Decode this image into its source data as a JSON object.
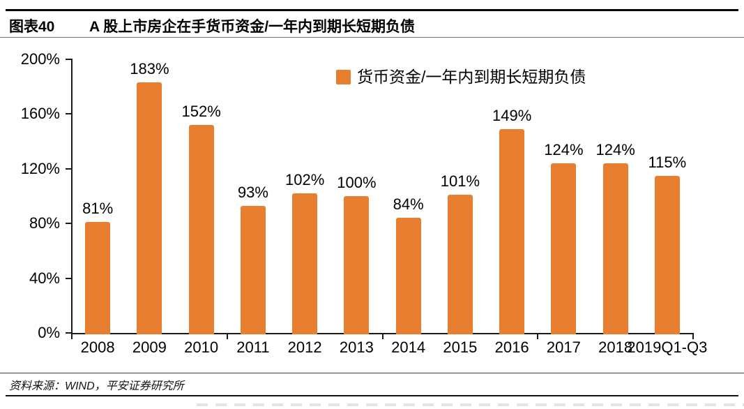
{
  "header": {
    "figure_label": "图表40",
    "title": "A 股上市房企在手货币资金/一年内到期长短期负债"
  },
  "chart_data": {
    "type": "bar",
    "title": "A 股上市房企在手货币资金/一年内到期长短期负债",
    "categories": [
      "2008",
      "2009",
      "2010",
      "2011",
      "2012",
      "2013",
      "2014",
      "2015",
      "2016",
      "2017",
      "2018",
      "2019Q1-Q3"
    ],
    "values": [
      81,
      183,
      152,
      93,
      102,
      100,
      84,
      101,
      149,
      124,
      124,
      115
    ],
    "unit": "%",
    "ylim": [
      0,
      200
    ],
    "yticks": [
      0,
      40,
      80,
      120,
      160,
      200
    ],
    "ytick_labels": [
      "0%",
      "40%",
      "80%",
      "120%",
      "160%",
      "200%"
    ],
    "grid": "off",
    "legend": "货币资金/一年内到期长短期负债",
    "legend_position": "top-center",
    "bar_color": "#E87E2F",
    "axis_color": "#1A1A1A"
  },
  "footer": {
    "source": "资料来源：WIND，平安证券研究所"
  }
}
